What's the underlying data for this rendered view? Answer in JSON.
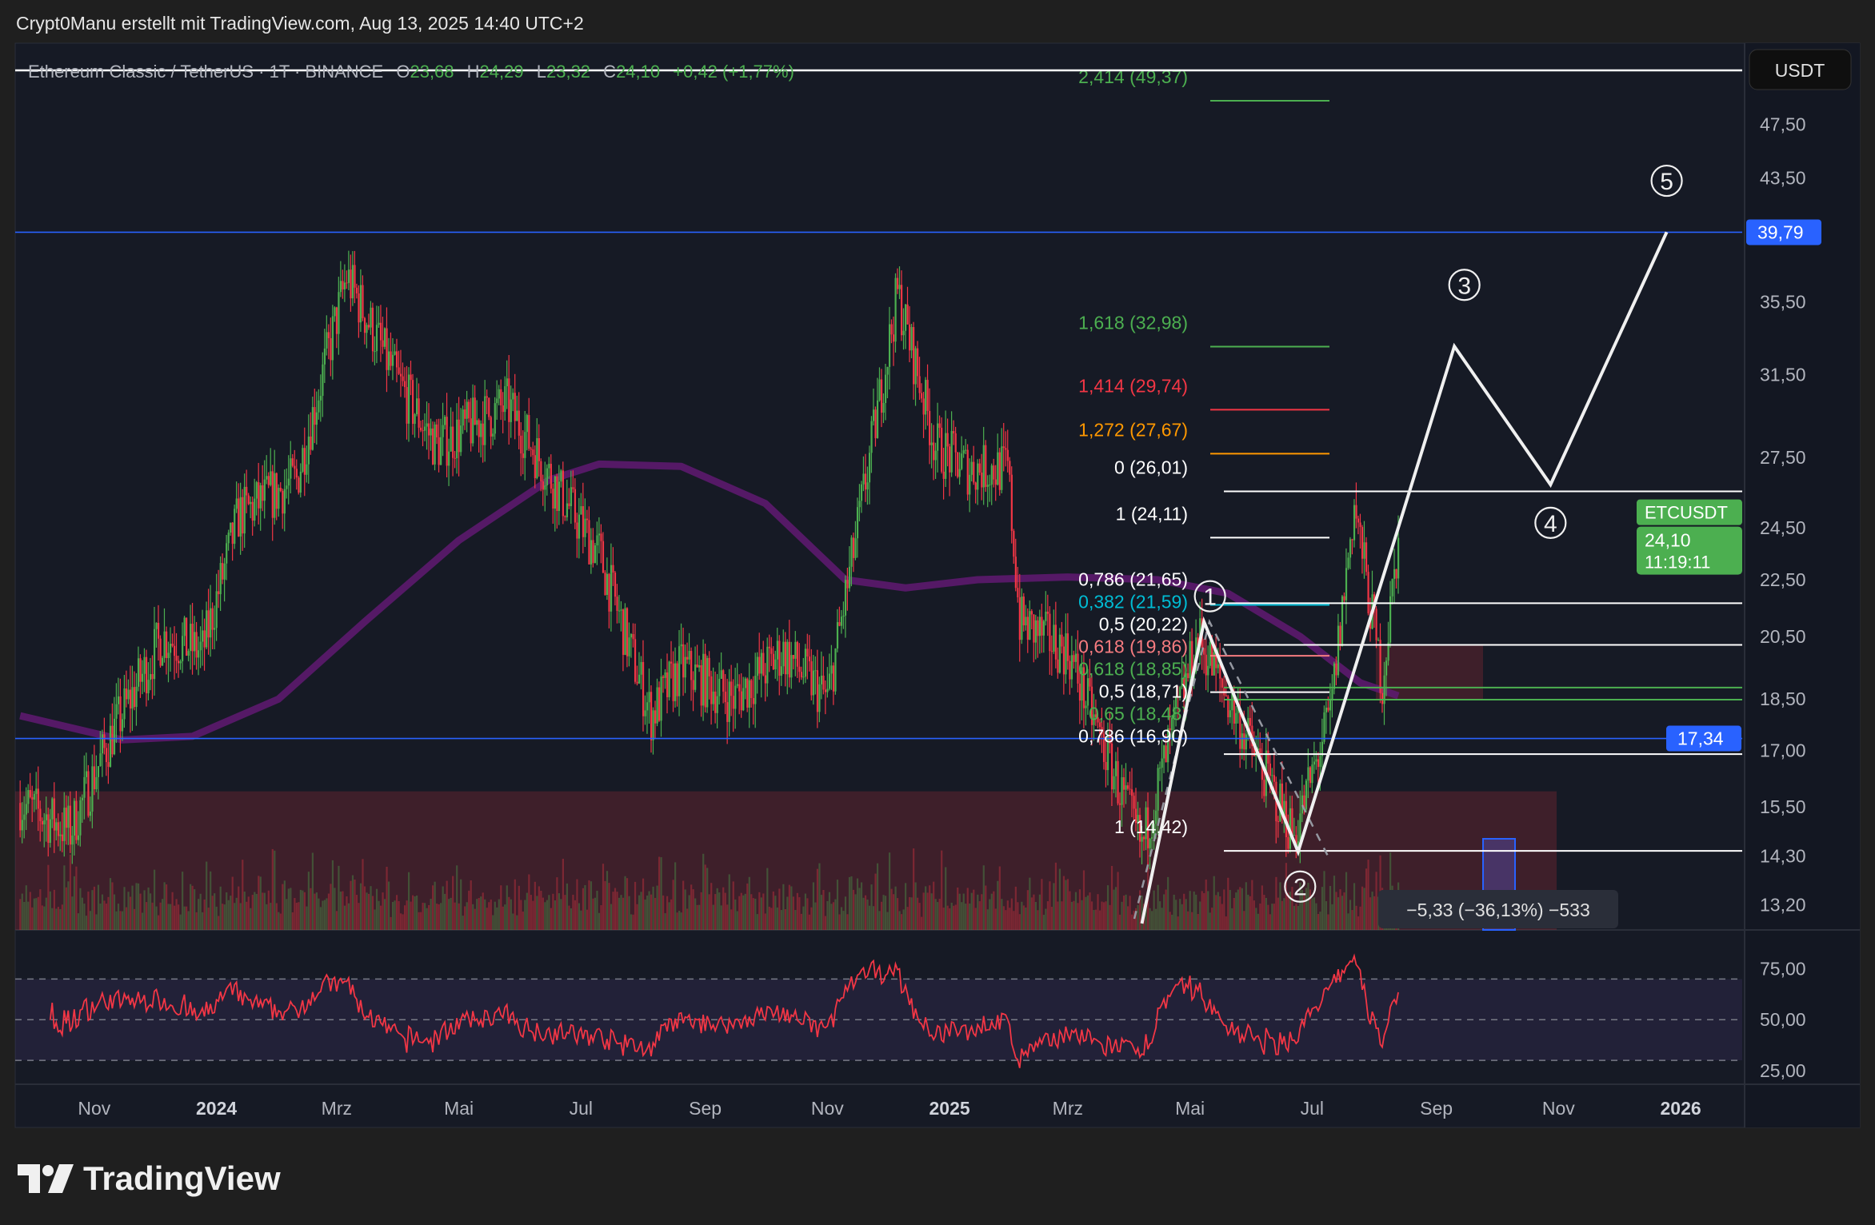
{
  "header": {
    "credit": "Crypt0Manu erstellt mit TradingView.com, Aug 13, 2025 14:40 UTC+2"
  },
  "legend": {
    "symbol": "Ethereum Classic / TetherUS · 1T · BINANCE",
    "o_label": "O",
    "o": "23,68",
    "h_label": "H",
    "h": "24,29",
    "l_label": "L",
    "l": "23,32",
    "c_label": "C",
    "c": "24,10",
    "change": "+0,42 (+1,77%)"
  },
  "currency_button": "USDT",
  "logo": {
    "text": "TradingView"
  },
  "colors": {
    "up": "#4caf50",
    "down": "#f23645",
    "ma": "#5c1a6e",
    "bg": "#161a25",
    "blue": "#2962ff",
    "rsi": "#f23645"
  },
  "price_tags": {
    "high_line": "39,79",
    "low_line": "17,34",
    "symbol_tag": "ETCUSDT",
    "last_price": "24,10",
    "countdown": "11:19:11"
  },
  "measure_tooltip": "−5,33 (−36,13%) −533",
  "chart_data": {
    "type": "candlestick",
    "scale": "log",
    "price_ticks": [
      "47,50",
      "43,50",
      "35,50",
      "31,50",
      "27,50",
      "24,50",
      "22,50",
      "20,50",
      "18,50",
      "17,00",
      "15,50",
      "14,30",
      "13,20"
    ],
    "price_tick_values": [
      47.5,
      43.5,
      35.5,
      31.5,
      27.5,
      24.5,
      22.5,
      20.5,
      18.5,
      17.0,
      15.5,
      14.3,
      13.2
    ],
    "x_ticks": [
      {
        "label": "Nov",
        "date": "2023-11-01",
        "bold": false
      },
      {
        "label": "2024",
        "date": "2024-01-01",
        "bold": true
      },
      {
        "label": "Mrz",
        "date": "2024-03-01",
        "bold": false
      },
      {
        "label": "Mai",
        "date": "2024-05-01",
        "bold": false
      },
      {
        "label": "Jul",
        "date": "2024-07-01",
        "bold": false
      },
      {
        "label": "Sep",
        "date": "2024-09-01",
        "bold": false
      },
      {
        "label": "Nov",
        "date": "2024-11-01",
        "bold": false
      },
      {
        "label": "2025",
        "date": "2025-01-01",
        "bold": true
      },
      {
        "label": "Mrz",
        "date": "2025-03-01",
        "bold": false
      },
      {
        "label": "Mai",
        "date": "2025-05-01",
        "bold": false
      },
      {
        "label": "Jul",
        "date": "2025-07-01",
        "bold": false
      },
      {
        "label": "Sep",
        "date": "2025-09-01",
        "bold": false
      },
      {
        "label": "Nov",
        "date": "2025-11-01",
        "bold": false
      },
      {
        "label": "2026",
        "date": "2026-01-01",
        "bold": true
      }
    ],
    "close_path": [
      [
        "2023-09-25",
        15.6
      ],
      [
        "2023-10-20",
        14.9
      ],
      [
        "2023-11-10",
        17.5
      ],
      [
        "2023-12-05",
        20.5
      ],
      [
        "2023-12-25",
        20.0
      ],
      [
        "2024-01-12",
        25.0
      ],
      [
        "2024-02-10",
        26.5
      ],
      [
        "2024-03-06",
        37.0
      ],
      [
        "2024-04-01",
        31.0
      ],
      [
        "2024-04-20",
        28.0
      ],
      [
        "2024-05-25",
        30.0
      ],
      [
        "2024-06-20",
        26.0
      ],
      [
        "2024-07-10",
        23.5
      ],
      [
        "2024-08-05",
        18.0
      ],
      [
        "2024-08-20",
        19.5
      ],
      [
        "2024-09-15",
        18.5
      ],
      [
        "2024-10-10",
        20.0
      ],
      [
        "2024-11-01",
        18.5
      ],
      [
        "2024-11-15",
        24.0
      ],
      [
        "2024-12-06",
        36.0
      ],
      [
        "2024-12-25",
        28.0
      ],
      [
        "2025-01-10",
        27.0
      ],
      [
        "2025-01-30",
        27.0
      ],
      [
        "2025-02-05",
        21.0
      ],
      [
        "2025-03-01",
        20.0
      ],
      [
        "2025-04-07",
        14.5
      ],
      [
        "2025-05-05",
        20.5
      ],
      [
        "2025-05-20",
        18.5
      ],
      [
        "2025-06-22",
        14.8
      ],
      [
        "2025-07-10",
        18.0
      ],
      [
        "2025-07-22",
        25.5
      ],
      [
        "2025-08-05",
        19.0
      ],
      [
        "2025-08-13",
        24.1
      ]
    ],
    "ma_path": [
      [
        "2023-09-25",
        18.0
      ],
      [
        "2023-11-15",
        17.3
      ],
      [
        "2023-12-20",
        17.4
      ],
      [
        "2024-02-01",
        18.5
      ],
      [
        "2024-03-15",
        21.0
      ],
      [
        "2024-05-01",
        24.0
      ],
      [
        "2024-06-15",
        26.5
      ],
      [
        "2024-07-10",
        27.2
      ],
      [
        "2024-08-20",
        27.1
      ],
      [
        "2024-10-01",
        25.5
      ],
      [
        "2024-11-10",
        22.5
      ],
      [
        "2024-12-10",
        22.2
      ],
      [
        "2025-01-15",
        22.5
      ],
      [
        "2025-03-01",
        22.6
      ],
      [
        "2025-04-15",
        22.5
      ],
      [
        "2025-05-20",
        22.0
      ],
      [
        "2025-06-25",
        20.5
      ],
      [
        "2025-07-25",
        19.0
      ],
      [
        "2025-08-13",
        18.6
      ]
    ],
    "horizontal_lines": [
      39.79,
      17.34
    ],
    "fib_levels": [
      {
        "label": "2,414 (49,37)",
        "price": 49.37,
        "color": "#4caf50",
        "long": false
      },
      {
        "label": "1,618 (32,98)",
        "price": 32.98,
        "color": "#4caf50",
        "long": false
      },
      {
        "label": "1,414 (29,74)",
        "price": 29.74,
        "color": "#f23645",
        "long": false
      },
      {
        "label": "1,272 (27,67)",
        "price": 27.67,
        "color": "#ff9800",
        "long": false
      },
      {
        "label": "0 (26,01)",
        "price": 26.01,
        "color": "#ffffff",
        "long": true
      },
      {
        "label": "1 (24,11)",
        "price": 24.11,
        "color": "#ffffff",
        "long": false
      },
      {
        "label": "0,382 (21,59)",
        "price": 21.59,
        "color": "#00bcd4",
        "long": false
      },
      {
        "label": "0,786 (21,65)",
        "price": 21.65,
        "color": "#ffffff",
        "long": true
      },
      {
        "label": "0,5 (20,22)",
        "price": 20.22,
        "color": "#ffffff",
        "long": true
      },
      {
        "label": "0,618 (19,86)",
        "price": 19.86,
        "color": "#f77c80",
        "long": false
      },
      {
        "label": "0,618 (18,85)",
        "price": 18.85,
        "color": "#4caf50",
        "long": true
      },
      {
        "label": "0,65 (18,48)",
        "price": 18.48,
        "color": "#4caf50",
        "long": true
      },
      {
        "label": "0,5 (18,71)",
        "price": 18.71,
        "color": "#ffffff",
        "long": false
      },
      {
        "label": "0,786 (16,90)",
        "price": 16.9,
        "color": "#ffffff",
        "long": true
      },
      {
        "label": "1 (14,42)",
        "price": 14.42,
        "color": "#ffffff",
        "long": true
      }
    ],
    "elliott_path": [
      [
        "2025-04-07",
        12.8
      ],
      [
        "2025-05-08",
        21.0
      ],
      [
        "2025-06-24",
        14.4
      ],
      [
        "2025-09-10",
        33.0
      ],
      [
        "2025-10-28",
        26.3
      ],
      [
        "2025-12-25",
        39.8
      ]
    ],
    "elliott_labels": [
      {
        "label": "1",
        "date": "2025-05-11",
        "price": 21.9
      },
      {
        "label": "2",
        "date": "2025-06-25",
        "price": 13.6
      },
      {
        "label": "3",
        "date": "2025-09-15",
        "price": 36.5
      },
      {
        "label": "4",
        "date": "2025-10-28",
        "price": 24.7
      },
      {
        "label": "5",
        "date": "2025-12-25",
        "price": 43.3
      }
    ],
    "rsi_ticks": [
      "75,00",
      "50,00",
      "25,00"
    ],
    "rsi_tick_values": [
      75,
      50,
      25
    ],
    "rsi_band": [
      30,
      70
    ]
  }
}
